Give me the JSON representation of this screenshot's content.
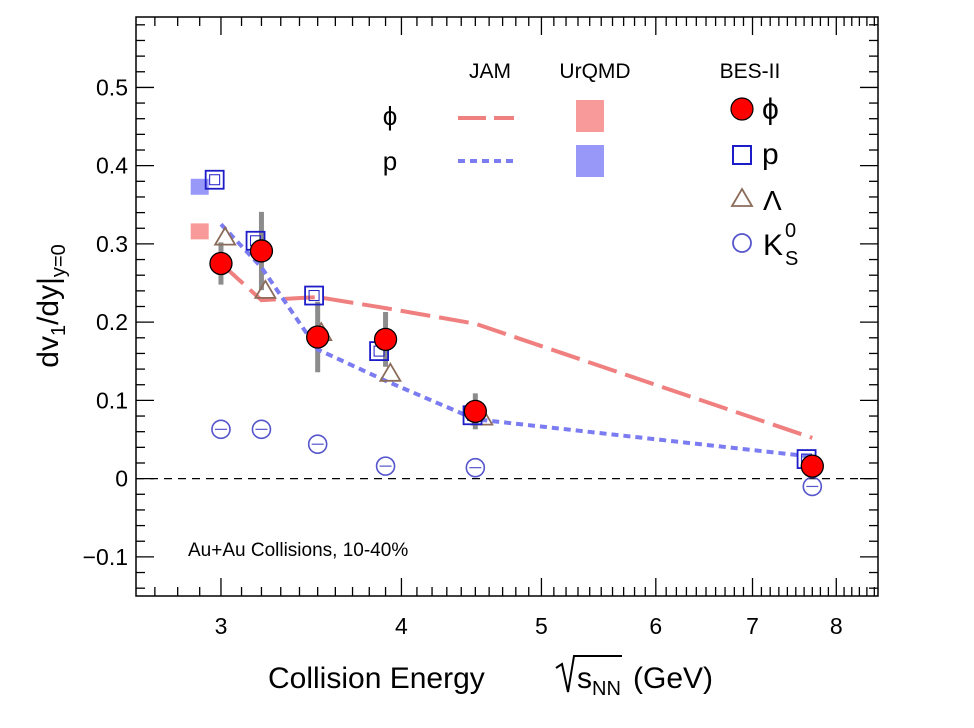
{
  "chart_data": {
    "type": "scatter",
    "x_scale": "log",
    "xlabel_main": "Collision Energy",
    "xlabel_sqrt": "s",
    "xlabel_sub": "NN",
    "xlabel_unit": "(GeV)",
    "ylabel_main": "dv",
    "ylabel_sub1": "1",
    "ylabel_mid": "/dy|",
    "ylabel_sub2": "y=0",
    "xlim": [
      2.62,
      8.55
    ],
    "ylim": [
      -0.15,
      0.59
    ],
    "x_ticks": [
      3,
      4,
      5,
      6,
      7,
      8
    ],
    "x_tick_labels": [
      "3",
      "4",
      "5",
      "6",
      "7",
      "8"
    ],
    "y_ticks": [
      -0.1,
      0,
      0.1,
      0.2,
      0.3,
      0.4,
      0.5
    ],
    "y_tick_labels": [
      "−0.1",
      "0",
      "0.1",
      "0.2",
      "0.3",
      "0.4",
      "0.5"
    ],
    "zero_line": true,
    "annotation": "Au+Au Collisions, 10-40%",
    "legend": {
      "placement": "top-right",
      "header_jam": "JAM",
      "header_urqmd": "UrQMD",
      "header_bes": "BES-II",
      "model_rows": [
        "ϕ",
        "p"
      ],
      "data_entries": [
        {
          "label": "ϕ"
        },
        {
          "label": "p"
        },
        {
          "label": "Λ"
        },
        {
          "label": "K",
          "sup": "0",
          "sub": "S"
        }
      ]
    },
    "colors": {
      "phi": "#ff0000",
      "proton": "#1c1cc8",
      "lambda": "#8b6b5a",
      "kshort": "#5555cc",
      "jam_phi": "#f08080",
      "jam_p": "#7b7bf2",
      "urqmd_phi": "#f89a9a",
      "urqmd_p": "#9898f8",
      "sys_bar": "#8c8c8c"
    },
    "series": [
      {
        "name": "ϕ",
        "marker": "filled-circle",
        "x": [
          3.0,
          3.2,
          3.5,
          3.9,
          4.5,
          7.7
        ],
        "y": [
          0.275,
          0.291,
          0.181,
          0.178,
          0.086,
          0.016
        ],
        "sys_err": [
          0.027,
          0.05,
          0.045,
          0.035,
          0.023,
          0.005
        ]
      },
      {
        "name": "p",
        "marker": "open-square",
        "x": [
          2.97,
          3.17,
          3.48,
          3.86,
          4.48,
          7.63
        ],
        "y": [
          0.382,
          0.304,
          0.234,
          0.163,
          0.081,
          0.025
        ]
      },
      {
        "name": "Λ",
        "marker": "open-triangle",
        "x": [
          3.02,
          3.22,
          3.52,
          3.93,
          4.55
        ],
        "y": [
          0.308,
          0.24,
          0.186,
          0.134,
          0.078
        ]
      },
      {
        "name": "K",
        "marker": "open-circle",
        "x": [
          3.0,
          3.2,
          3.5,
          3.9,
          4.5,
          7.7,
          7.7
        ],
        "y": [
          0.063,
          0.063,
          0.044,
          0.016,
          0.014,
          0.018,
          -0.01
        ]
      }
    ],
    "models": [
      {
        "name": "JAM ϕ",
        "style": "long-dash",
        "x": [
          3.0,
          3.2,
          3.5,
          3.9,
          4.5,
          7.7
        ],
        "y": [
          0.275,
          0.228,
          0.232,
          0.218,
          0.198,
          0.052
        ]
      },
      {
        "name": "JAM p",
        "style": "short-dash",
        "x": [
          3.0,
          3.2,
          3.5,
          3.9,
          4.5,
          7.7
        ],
        "y": [
          0.325,
          0.27,
          0.165,
          0.125,
          0.076,
          0.028
        ]
      },
      {
        "name": "UrQMD ϕ",
        "style": "filled-square",
        "x": [
          2.9
        ],
        "y": [
          0.316
        ]
      },
      {
        "name": "UrQMD p",
        "style": "filled-square",
        "x": [
          2.9
        ],
        "y": [
          0.373
        ]
      }
    ]
  }
}
